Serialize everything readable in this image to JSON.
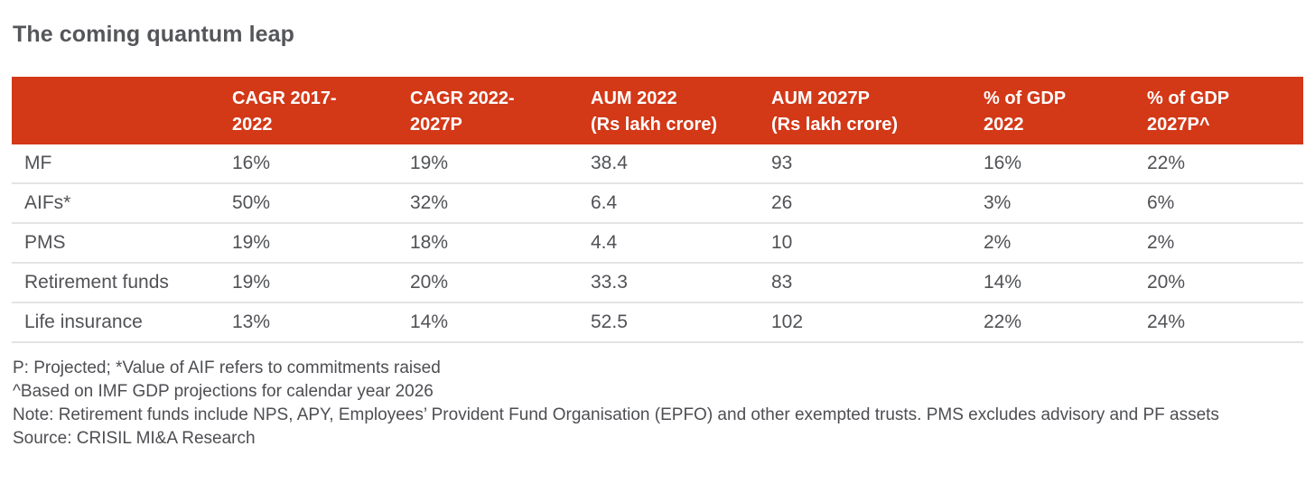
{
  "title": "The coming quantum leap",
  "colors": {
    "header_bg": "#d33817",
    "header_text": "#ffffff",
    "title_text": "#55565a",
    "body_text": "#515256",
    "divider": "#e4e4e4",
    "background": "#ffffff"
  },
  "chart_data": {
    "type": "table",
    "title": "The coming quantum leap",
    "columns": [
      {
        "label": "",
        "line1": "",
        "line2": ""
      },
      {
        "label": "CAGR 2017-2022",
        "line1": "CAGR 2017-",
        "line2": "2022"
      },
      {
        "label": "CAGR 2022-2027P",
        "line1": "CAGR 2022-",
        "line2": "2027P"
      },
      {
        "label": "AUM 2022 (Rs lakh crore)",
        "line1": "AUM 2022",
        "line2": "(Rs lakh crore)"
      },
      {
        "label": "AUM 2027P (Rs lakh crore)",
        "line1": "AUM 2027P",
        "line2": "(Rs lakh crore)"
      },
      {
        "label": "% of GDP 2022",
        "line1": "% of GDP",
        "line2": "2022"
      },
      {
        "label": "% of GDP 2027P^",
        "line1": "% of GDP",
        "line2": "2027P^"
      }
    ],
    "rows": [
      {
        "cells": [
          "MF",
          "16%",
          "19%",
          "38.4",
          "93",
          "16%",
          "22%"
        ]
      },
      {
        "cells": [
          "AIFs*",
          "50%",
          "32%",
          "6.4",
          "26",
          "3%",
          "6%"
        ]
      },
      {
        "cells": [
          "PMS",
          "19%",
          "18%",
          "4.4",
          "10",
          "2%",
          "2%"
        ]
      },
      {
        "cells": [
          "Retirement funds",
          "19%",
          "20%",
          "33.3",
          "83",
          "14%",
          "20%"
        ]
      },
      {
        "cells": [
          "Life insurance",
          "13%",
          "14%",
          "52.5",
          "102",
          "22%",
          "24%"
        ]
      }
    ],
    "footnotes": [
      "P: Projected; *Value of AIF refers to commitments raised",
      "^Based on IMF GDP projections for calendar year 2026",
      "Note: Retirement funds include NPS, APY, Employees’ Provident Fund Organisation (EPFO) and other exempted trusts. PMS excludes advisory and PF assets",
      "Source: CRISIL MI&A Research"
    ]
  }
}
